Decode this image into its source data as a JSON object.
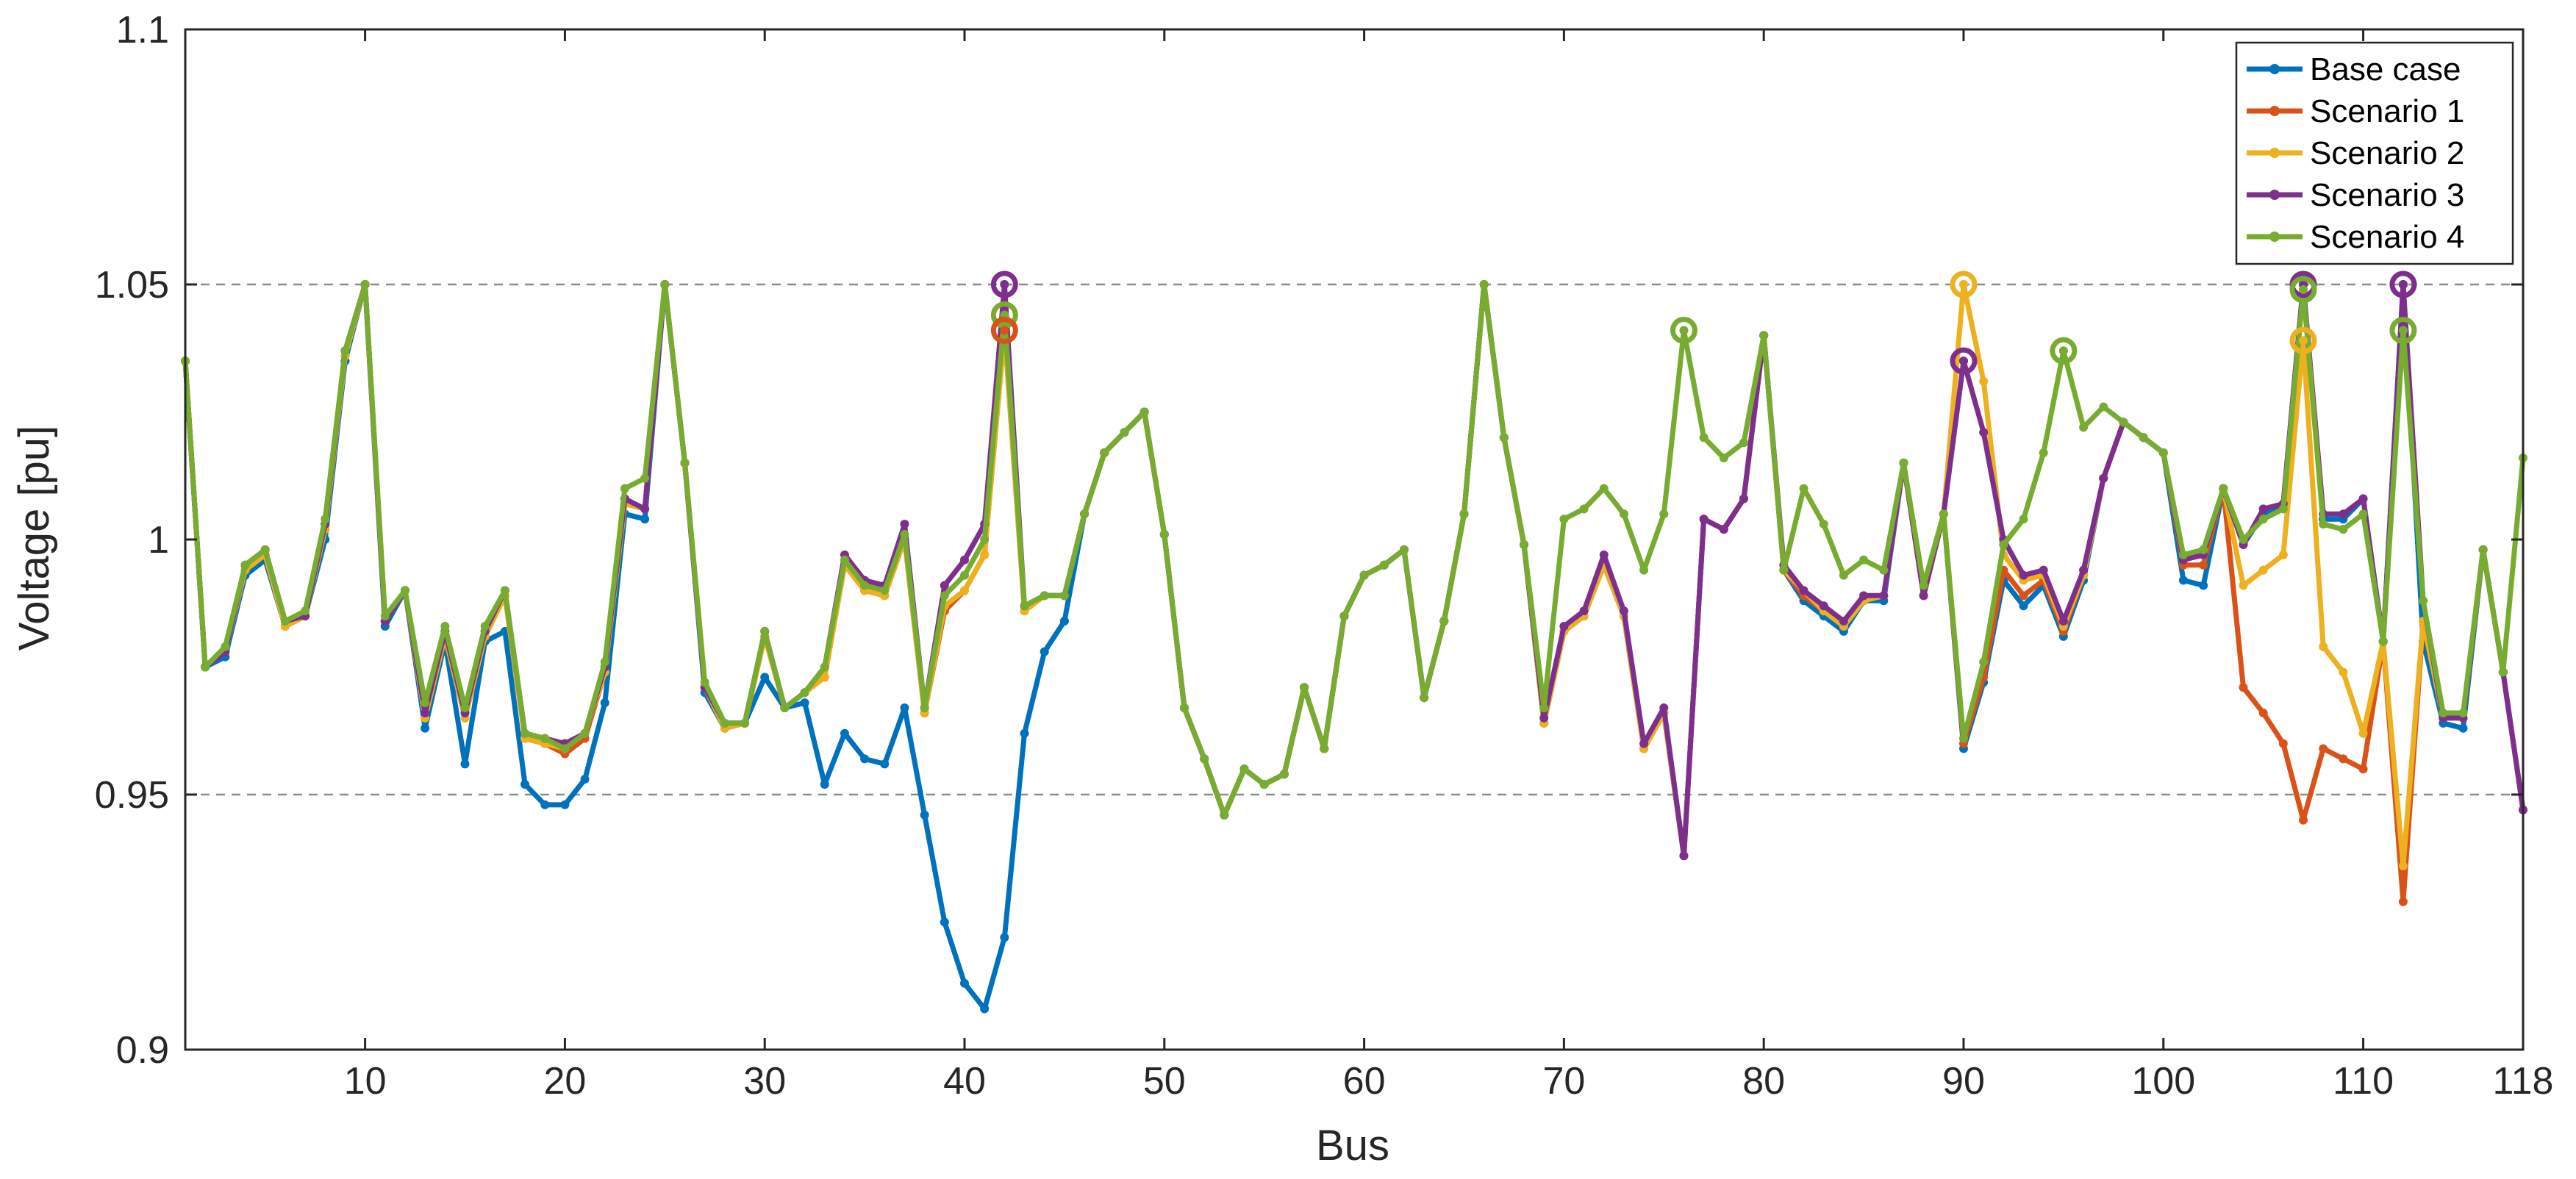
{
  "chart_data": {
    "type": "line",
    "xlabel": "Bus",
    "ylabel": "Voltage [pu]",
    "xlim": [
      1,
      118
    ],
    "ylim": [
      0.9,
      1.1
    ],
    "xticks": [
      10,
      20,
      30,
      40,
      50,
      60,
      70,
      80,
      90,
      100,
      110,
      118
    ],
    "xtick_labels": [
      "10",
      "20",
      "30",
      "40",
      "50",
      "60",
      "70",
      "80",
      "90",
      "100",
      "110",
      "118"
    ],
    "yticks": [
      0.9,
      0.95,
      1,
      1.05,
      1.1
    ],
    "ytick_labels": [
      "0.9",
      "0.95",
      "1",
      "1.05",
      "1.1"
    ],
    "limit_lines": [
      0.95,
      1.05
    ],
    "legend_position": "top-right",
    "grid": false,
    "series": [
      {
        "name": "Base case",
        "color": "#0072BD",
        "values": [
          1.035,
          0.975,
          0.977,
          0.993,
          0.996,
          0.983,
          0.985,
          1.0,
          1.035,
          1.05,
          0.983,
          0.99,
          0.963,
          0.98,
          0.956,
          0.98,
          0.982,
          0.952,
          0.948,
          0.948,
          0.953,
          0.968,
          1.005,
          1.004,
          1.05,
          1.015,
          0.97,
          0.963,
          0.964,
          0.973,
          0.967,
          0.968,
          0.952,
          0.962,
          0.957,
          0.956,
          0.967,
          0.946,
          0.925,
          0.913,
          0.908,
          0.922,
          0.962,
          0.978,
          0.984,
          1.005,
          1.017,
          1.021,
          1.025,
          1.001,
          0.967,
          0.957,
          0.946,
          0.955,
          0.952,
          0.954,
          0.971,
          0.959,
          0.985,
          0.993,
          0.995,
          0.998,
          0.969,
          0.984,
          1.005,
          1.05,
          1.02,
          0.999,
          0.964,
          0.982,
          0.985,
          0.995,
          0.985,
          0.959,
          0.966,
          0.938,
          1.004,
          1.002,
          1.008,
          1.04,
          0.994,
          0.988,
          0.985,
          0.982,
          0.988,
          0.988,
          1.015,
          0.989,
          1.005,
          0.959,
          0.972,
          0.992,
          0.987,
          0.991,
          0.981,
          0.992,
          1.012,
          1.023,
          1.02,
          1.017,
          0.992,
          0.991,
          1.01,
          0.999,
          1.005,
          1.007,
          1.05,
          1.004,
          1.004,
          1.008,
          0.98,
          1.05,
          0.98,
          0.964,
          0.963,
          0.998,
          0.974,
          0.947
        ]
      },
      {
        "name": "Scenario 1",
        "color": "#D95319",
        "values": [
          1.035,
          0.975,
          0.978,
          0.994,
          0.997,
          0.983,
          0.985,
          1.002,
          1.036,
          1.05,
          0.984,
          0.99,
          0.965,
          0.981,
          0.965,
          0.981,
          0.989,
          0.961,
          0.96,
          0.958,
          0.961,
          0.974,
          1.007,
          1.006,
          1.05,
          1.015,
          0.971,
          0.963,
          0.964,
          0.981,
          0.967,
          0.97,
          0.973,
          0.995,
          0.99,
          0.989,
          1.0,
          0.966,
          0.986,
          0.99,
          0.997,
          1.041,
          0.986,
          0.989,
          0.989,
          1.005,
          1.017,
          1.021,
          1.025,
          1.001,
          0.967,
          0.957,
          0.946,
          0.955,
          0.952,
          0.954,
          0.971,
          0.959,
          0.985,
          0.993,
          0.995,
          0.998,
          0.969,
          0.984,
          1.005,
          1.05,
          1.02,
          0.999,
          0.964,
          0.982,
          0.985,
          0.995,
          0.985,
          0.959,
          0.966,
          0.938,
          1.004,
          1.002,
          1.008,
          1.04,
          0.994,
          0.989,
          0.986,
          0.983,
          0.988,
          0.989,
          1.015,
          0.989,
          1.005,
          0.96,
          0.973,
          0.994,
          0.989,
          0.992,
          0.982,
          0.993,
          1.012,
          1.023,
          1.02,
          1.017,
          0.995,
          0.995,
          1.01,
          0.971,
          0.966,
          0.96,
          0.945,
          0.959,
          0.957,
          0.955,
          0.98,
          0.929,
          0.984,
          0.965,
          0.965,
          0.998,
          0.974,
          0.947
        ]
      },
      {
        "name": "Scenario 2",
        "color": "#EDB120",
        "values": [
          1.035,
          0.975,
          0.978,
          0.994,
          0.997,
          0.983,
          0.985,
          1.002,
          1.036,
          1.05,
          0.984,
          0.99,
          0.965,
          0.981,
          0.965,
          0.981,
          0.989,
          0.961,
          0.96,
          0.959,
          0.962,
          0.974,
          1.007,
          1.006,
          1.05,
          1.015,
          0.971,
          0.963,
          0.964,
          0.981,
          0.967,
          0.97,
          0.973,
          0.995,
          0.99,
          0.989,
          1.0,
          0.966,
          0.987,
          0.99,
          0.997,
          1.041,
          0.986,
          0.989,
          0.989,
          1.005,
          1.017,
          1.021,
          1.025,
          1.001,
          0.967,
          0.957,
          0.946,
          0.955,
          0.952,
          0.954,
          0.971,
          0.959,
          0.985,
          0.993,
          0.995,
          0.998,
          0.969,
          0.984,
          1.005,
          1.05,
          1.02,
          0.999,
          0.964,
          0.982,
          0.985,
          0.995,
          0.985,
          0.959,
          0.966,
          0.938,
          1.004,
          1.002,
          1.008,
          1.04,
          0.994,
          0.99,
          0.986,
          0.983,
          0.988,
          0.989,
          1.015,
          0.989,
          1.005,
          1.05,
          1.031,
          0.997,
          0.992,
          0.993,
          0.983,
          0.993,
          1.012,
          1.023,
          1.02,
          1.017,
          0.996,
          0.997,
          1.01,
          0.991,
          0.994,
          0.997,
          1.039,
          0.979,
          0.974,
          0.962,
          0.98,
          0.936,
          0.984,
          0.965,
          0.965,
          0.998,
          0.974,
          0.947
        ]
      },
      {
        "name": "Scenario 3",
        "color": "#7E2F8E",
        "values": [
          1.035,
          0.975,
          0.978,
          0.995,
          0.998,
          0.984,
          0.985,
          1.003,
          1.037,
          1.05,
          0.984,
          0.99,
          0.966,
          0.982,
          0.966,
          0.982,
          0.99,
          0.962,
          0.961,
          0.96,
          0.962,
          0.975,
          1.008,
          1.006,
          1.05,
          1.015,
          0.971,
          0.964,
          0.964,
          0.982,
          0.967,
          0.97,
          0.975,
          0.997,
          0.992,
          0.991,
          1.003,
          0.967,
          0.991,
          0.996,
          1.003,
          1.05,
          0.987,
          0.989,
          0.989,
          1.005,
          1.017,
          1.021,
          1.025,
          1.001,
          0.967,
          0.957,
          0.946,
          0.955,
          0.952,
          0.954,
          0.971,
          0.959,
          0.985,
          0.993,
          0.995,
          0.998,
          0.969,
          0.984,
          1.005,
          1.05,
          1.02,
          0.999,
          0.965,
          0.983,
          0.986,
          0.997,
          0.986,
          0.96,
          0.967,
          0.938,
          1.004,
          1.002,
          1.008,
          1.04,
          0.995,
          0.99,
          0.987,
          0.984,
          0.989,
          0.989,
          1.015,
          0.989,
          1.005,
          1.035,
          1.021,
          1.0,
          0.993,
          0.994,
          0.984,
          0.994,
          1.012,
          1.023,
          1.02,
          1.017,
          0.996,
          0.997,
          1.01,
          0.999,
          1.006,
          1.007,
          1.05,
          1.005,
          1.005,
          1.008,
          0.98,
          1.05,
          0.988,
          0.965,
          0.965,
          0.998,
          0.974,
          0.947
        ]
      },
      {
        "name": "Scenario 4",
        "color": "#77AC30",
        "values": [
          1.035,
          0.975,
          0.979,
          0.995,
          0.998,
          0.984,
          0.986,
          1.004,
          1.037,
          1.05,
          0.985,
          0.99,
          0.968,
          0.983,
          0.967,
          0.983,
          0.99,
          0.962,
          0.961,
          0.959,
          0.962,
          0.976,
          1.01,
          1.012,
          1.05,
          1.015,
          0.972,
          0.964,
          0.964,
          0.982,
          0.967,
          0.97,
          0.975,
          0.996,
          0.991,
          0.99,
          1.001,
          0.967,
          0.989,
          0.993,
          1.0,
          1.044,
          0.987,
          0.989,
          0.989,
          1.005,
          1.017,
          1.021,
          1.025,
          1.001,
          0.967,
          0.957,
          0.946,
          0.955,
          0.952,
          0.954,
          0.971,
          0.959,
          0.985,
          0.993,
          0.995,
          0.998,
          0.969,
          0.984,
          1.005,
          1.05,
          1.02,
          0.999,
          0.967,
          1.004,
          1.006,
          1.01,
          1.005,
          0.994,
          1.005,
          1.041,
          1.02,
          1.016,
          1.019,
          1.04,
          0.994,
          1.01,
          1.003,
          0.993,
          0.996,
          0.994,
          1.015,
          0.991,
          1.005,
          0.961,
          0.976,
          0.999,
          1.004,
          1.017,
          1.037,
          1.022,
          1.026,
          1.023,
          1.02,
          1.017,
          0.997,
          0.998,
          1.01,
          1.0,
          1.004,
          1.006,
          1.049,
          1.003,
          1.002,
          1.005,
          0.98,
          1.041,
          0.988,
          0.966,
          0.966,
          0.998,
          0.974,
          1.016
        ]
      }
    ],
    "highlighted_markers": [
      {
        "series": "Scenario 3",
        "bus": 42,
        "value": 1.05
      },
      {
        "series": "Scenario 4",
        "bus": 42,
        "value": 1.044
      },
      {
        "series": "Scenario 1",
        "bus": 42,
        "value": 1.041
      },
      {
        "series": "Scenario 4",
        "bus": 76,
        "value": 1.041
      },
      {
        "series": "Scenario 2",
        "bus": 90,
        "value": 1.05
      },
      {
        "series": "Scenario 3",
        "bus": 90,
        "value": 1.035
      },
      {
        "series": "Scenario 4",
        "bus": 95,
        "value": 1.037
      },
      {
        "series": "Scenario 3",
        "bus": 107,
        "value": 1.05
      },
      {
        "series": "Scenario 4",
        "bus": 107,
        "value": 1.049
      },
      {
        "series": "Scenario 2",
        "bus": 107,
        "value": 1.039
      },
      {
        "series": "Scenario 3",
        "bus": 112,
        "value": 1.05
      },
      {
        "series": "Scenario 4",
        "bus": 112,
        "value": 1.041
      }
    ]
  }
}
